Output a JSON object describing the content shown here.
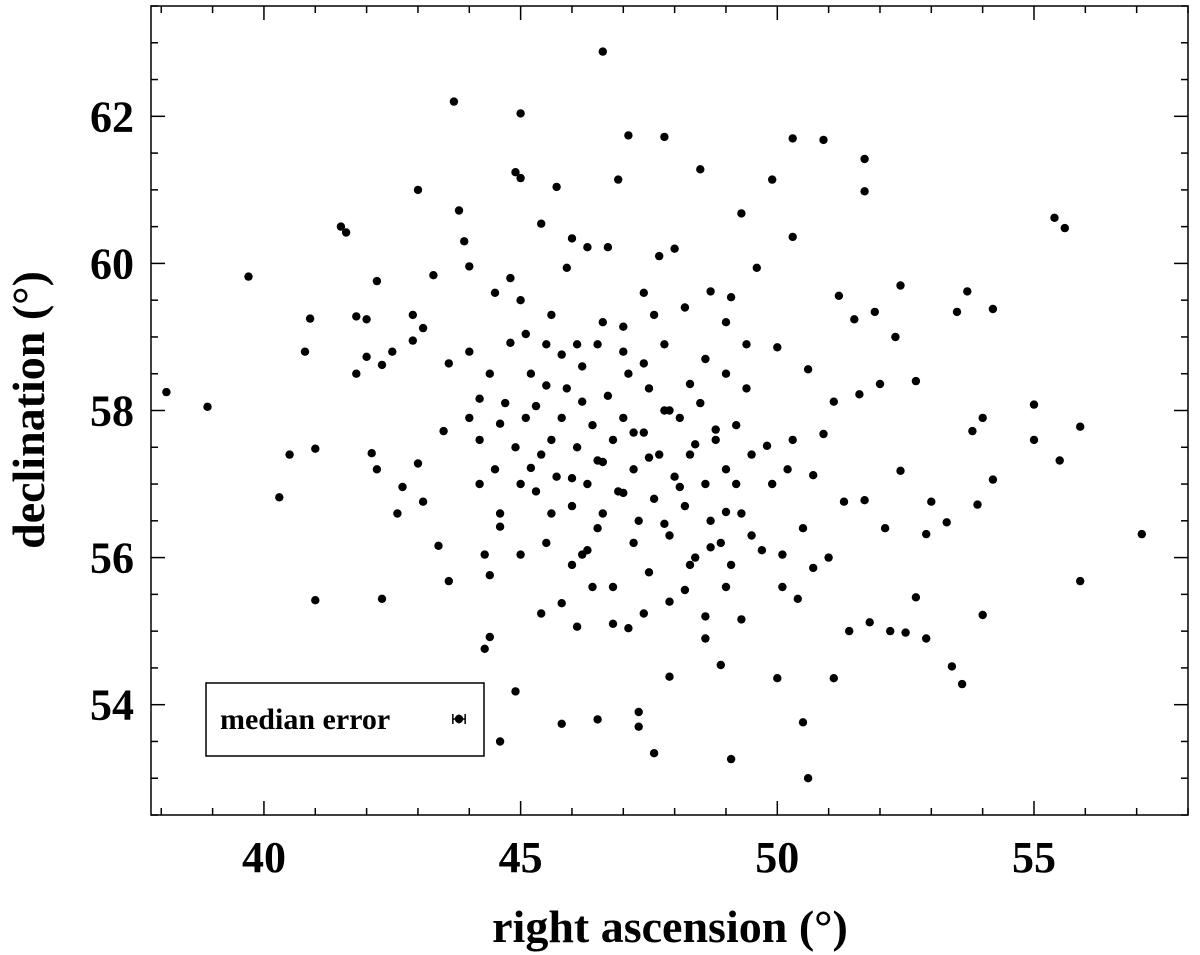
{
  "chart_data": {
    "type": "scatter",
    "title": "",
    "xlabel": "right ascension (°)",
    "ylabel": "declination (°)",
    "xlim": [
      37.8,
      58.0
    ],
    "ylim": [
      52.5,
      63.5
    ],
    "x_ticks": [
      40,
      45,
      50,
      55
    ],
    "y_ticks": [
      54,
      56,
      58,
      60,
      62
    ],
    "x_minor_step": 1,
    "y_minor_step": 0.5,
    "grid": false,
    "legend": {
      "placement": "bottom-left",
      "label": "median error",
      "error_x": 0.12,
      "error_y": 0.06
    },
    "marker_color": "#000000",
    "series": [
      {
        "points": [
          [
            38.1,
            58.25
          ],
          [
            38.9,
            58.05
          ],
          [
            39.7,
            59.82
          ],
          [
            40.3,
            56.82
          ],
          [
            40.5,
            57.4
          ],
          [
            40.8,
            58.8
          ],
          [
            40.9,
            59.25
          ],
          [
            41.0,
            57.48
          ],
          [
            41.0,
            55.42
          ],
          [
            41.5,
            60.5
          ],
          [
            41.6,
            60.42
          ],
          [
            41.8,
            59.28
          ],
          [
            41.8,
            58.5
          ],
          [
            42.0,
            59.24
          ],
          [
            42.0,
            58.73
          ],
          [
            42.1,
            57.42
          ],
          [
            42.2,
            57.2
          ],
          [
            42.2,
            59.76
          ],
          [
            42.3,
            55.44
          ],
          [
            42.3,
            58.62
          ],
          [
            42.5,
            58.8
          ],
          [
            42.6,
            56.6
          ],
          [
            42.7,
            56.96
          ],
          [
            42.9,
            58.95
          ],
          [
            42.9,
            59.3
          ],
          [
            43.0,
            57.28
          ],
          [
            43.0,
            61.0
          ],
          [
            43.1,
            59.12
          ],
          [
            43.1,
            56.76
          ],
          [
            43.3,
            59.84
          ],
          [
            43.4,
            56.16
          ],
          [
            43.5,
            57.72
          ],
          [
            43.6,
            55.68
          ],
          [
            43.6,
            58.64
          ],
          [
            43.7,
            62.2
          ],
          [
            43.8,
            60.72
          ],
          [
            43.9,
            60.3
          ],
          [
            44.0,
            59.96
          ],
          [
            44.0,
            58.8
          ],
          [
            44.2,
            57.0
          ],
          [
            44.2,
            58.16
          ],
          [
            44.3,
            56.04
          ],
          [
            44.3,
            54.76
          ],
          [
            44.4,
            54.92
          ],
          [
            44.4,
            55.76
          ],
          [
            44.5,
            59.6
          ],
          [
            44.6,
            56.42
          ],
          [
            44.6,
            57.82
          ],
          [
            44.6,
            53.5
          ],
          [
            44.8,
            59.8
          ],
          [
            44.8,
            58.92
          ],
          [
            44.9,
            54.18
          ],
          [
            44.9,
            61.24
          ],
          [
            45.0,
            62.04
          ],
          [
            45.0,
            61.16
          ],
          [
            45.0,
            56.04
          ],
          [
            45.1,
            59.04
          ],
          [
            45.2,
            57.22
          ],
          [
            45.3,
            58.06
          ],
          [
            45.4,
            60.54
          ],
          [
            45.4,
            55.24
          ],
          [
            45.5,
            58.34
          ],
          [
            45.6,
            57.6
          ],
          [
            45.6,
            56.6
          ],
          [
            45.7,
            61.04
          ],
          [
            45.8,
            55.38
          ],
          [
            45.8,
            53.74
          ],
          [
            45.8,
            58.76
          ],
          [
            45.9,
            59.94
          ],
          [
            46.0,
            57.08
          ],
          [
            46.0,
            60.34
          ],
          [
            46.1,
            55.06
          ],
          [
            46.2,
            56.04
          ],
          [
            46.2,
            58.12
          ],
          [
            46.3,
            60.22
          ],
          [
            46.4,
            55.6
          ],
          [
            46.5,
            53.8
          ],
          [
            46.5,
            57.32
          ],
          [
            46.5,
            58.9
          ],
          [
            46.6,
            62.88
          ],
          [
            46.6,
            56.6
          ],
          [
            46.7,
            60.22
          ],
          [
            46.8,
            55.1
          ],
          [
            46.9,
            61.14
          ],
          [
            47.0,
            59.14
          ],
          [
            47.0,
            56.88
          ],
          [
            47.1,
            55.04
          ],
          [
            47.1,
            61.74
          ],
          [
            47.2,
            57.7
          ],
          [
            47.3,
            53.9
          ],
          [
            47.3,
            53.7
          ],
          [
            47.4,
            55.24
          ],
          [
            47.4,
            58.64
          ],
          [
            47.5,
            57.36
          ],
          [
            47.6,
            53.34
          ],
          [
            47.6,
            59.3
          ],
          [
            47.7,
            60.1
          ],
          [
            47.8,
            56.46
          ],
          [
            47.8,
            61.72
          ],
          [
            47.9,
            54.38
          ],
          [
            47.9,
            58.0
          ],
          [
            48.0,
            60.2
          ],
          [
            48.1,
            56.96
          ],
          [
            48.2,
            55.56
          ],
          [
            48.3,
            58.36
          ],
          [
            48.4,
            57.54
          ],
          [
            48.5,
            61.28
          ],
          [
            48.6,
            54.9
          ],
          [
            48.7,
            56.14
          ],
          [
            48.7,
            59.62
          ],
          [
            48.8,
            57.74
          ],
          [
            48.9,
            54.54
          ],
          [
            49.0,
            58.5
          ],
          [
            49.0,
            56.62
          ],
          [
            49.1,
            59.54
          ],
          [
            49.1,
            53.26
          ],
          [
            49.2,
            57.0
          ],
          [
            49.3,
            60.68
          ],
          [
            49.3,
            55.16
          ],
          [
            49.4,
            58.3
          ],
          [
            49.5,
            56.3
          ],
          [
            49.6,
            59.94
          ],
          [
            49.8,
            57.52
          ],
          [
            49.9,
            61.14
          ],
          [
            50.0,
            58.86
          ],
          [
            50.0,
            54.36
          ],
          [
            50.1,
            56.04
          ],
          [
            50.2,
            57.2
          ],
          [
            50.3,
            61.7
          ],
          [
            50.3,
            60.36
          ],
          [
            50.4,
            55.44
          ],
          [
            50.5,
            53.76
          ],
          [
            50.6,
            58.56
          ],
          [
            50.6,
            53.0
          ],
          [
            50.7,
            57.12
          ],
          [
            50.7,
            55.86
          ],
          [
            50.9,
            61.68
          ],
          [
            50.9,
            57.68
          ],
          [
            51.0,
            56.0
          ],
          [
            51.1,
            58.12
          ],
          [
            51.1,
            54.36
          ],
          [
            51.2,
            59.56
          ],
          [
            51.3,
            56.76
          ],
          [
            51.4,
            55.0
          ],
          [
            51.5,
            59.24
          ],
          [
            51.6,
            58.22
          ],
          [
            51.7,
            61.42
          ],
          [
            51.7,
            60.98
          ],
          [
            51.7,
            56.78
          ],
          [
            51.8,
            55.12
          ],
          [
            51.9,
            59.34
          ],
          [
            52.0,
            58.36
          ],
          [
            52.1,
            56.4
          ],
          [
            52.2,
            55.0
          ],
          [
            52.3,
            59.0
          ],
          [
            52.4,
            57.18
          ],
          [
            52.4,
            59.7
          ],
          [
            52.5,
            54.98
          ],
          [
            52.7,
            58.4
          ],
          [
            52.7,
            55.46
          ],
          [
            52.9,
            56.32
          ],
          [
            52.9,
            54.9
          ],
          [
            53.0,
            56.76
          ],
          [
            53.3,
            56.48
          ],
          [
            53.4,
            54.52
          ],
          [
            53.5,
            59.34
          ],
          [
            53.6,
            54.28
          ],
          [
            53.7,
            59.62
          ],
          [
            53.8,
            57.72
          ],
          [
            53.9,
            56.72
          ],
          [
            54.0,
            57.9
          ],
          [
            54.0,
            55.22
          ],
          [
            54.2,
            59.38
          ],
          [
            54.2,
            57.06
          ],
          [
            55.0,
            58.08
          ],
          [
            55.0,
            57.6
          ],
          [
            55.4,
            60.62
          ],
          [
            55.5,
            57.32
          ],
          [
            55.6,
            60.48
          ],
          [
            55.9,
            57.78
          ],
          [
            55.9,
            55.68
          ],
          [
            57.1,
            56.32
          ],
          [
            44.0,
            57.9
          ],
          [
            44.2,
            57.6
          ],
          [
            44.5,
            57.2
          ],
          [
            44.7,
            58.1
          ],
          [
            44.9,
            57.5
          ],
          [
            45.1,
            57.9
          ],
          [
            45.2,
            58.5
          ],
          [
            45.3,
            56.9
          ],
          [
            45.4,
            57.4
          ],
          [
            45.5,
            58.9
          ],
          [
            45.7,
            57.1
          ],
          [
            45.8,
            57.9
          ],
          [
            45.9,
            58.3
          ],
          [
            46.0,
            56.7
          ],
          [
            46.1,
            57.5
          ],
          [
            46.2,
            58.6
          ],
          [
            46.3,
            57.0
          ],
          [
            46.4,
            57.8
          ],
          [
            46.5,
            56.4
          ],
          [
            46.6,
            57.3
          ],
          [
            46.7,
            58.2
          ],
          [
            46.8,
            57.6
          ],
          [
            46.9,
            56.9
          ],
          [
            47.0,
            57.9
          ],
          [
            47.1,
            58.5
          ],
          [
            47.2,
            57.2
          ],
          [
            47.3,
            56.5
          ],
          [
            47.4,
            57.7
          ],
          [
            47.5,
            58.3
          ],
          [
            47.6,
            56.8
          ],
          [
            47.7,
            57.4
          ],
          [
            47.8,
            58.0
          ],
          [
            47.9,
            56.3
          ],
          [
            48.0,
            57.1
          ],
          [
            48.1,
            57.9
          ],
          [
            48.2,
            56.7
          ],
          [
            48.3,
            57.4
          ],
          [
            48.4,
            56.0
          ],
          [
            48.5,
            58.1
          ],
          [
            48.6,
            57.0
          ],
          [
            48.7,
            56.5
          ],
          [
            48.8,
            57.6
          ],
          [
            48.9,
            56.2
          ],
          [
            49.0,
            57.2
          ],
          [
            49.1,
            55.9
          ],
          [
            49.2,
            57.8
          ],
          [
            49.3,
            56.6
          ],
          [
            49.5,
            57.4
          ],
          [
            49.7,
            56.1
          ],
          [
            49.9,
            57.0
          ],
          [
            50.1,
            55.6
          ],
          [
            50.3,
            57.6
          ],
          [
            50.5,
            56.4
          ],
          [
            44.6,
            56.6
          ],
          [
            45.0,
            57.0
          ],
          [
            45.5,
            56.2
          ],
          [
            46.0,
            55.9
          ],
          [
            46.3,
            56.1
          ],
          [
            46.8,
            55.6
          ],
          [
            47.2,
            56.2
          ],
          [
            47.5,
            55.8
          ],
          [
            47.9,
            55.4
          ],
          [
            48.3,
            55.9
          ],
          [
            48.6,
            55.2
          ],
          [
            49.0,
            55.6
          ],
          [
            46.1,
            58.9
          ],
          [
            46.6,
            59.2
          ],
          [
            47.0,
            58.8
          ],
          [
            47.4,
            59.6
          ],
          [
            47.8,
            58.9
          ],
          [
            48.2,
            59.4
          ],
          [
            48.6,
            58.7
          ],
          [
            49.0,
            59.2
          ],
          [
            49.4,
            58.9
          ],
          [
            45.6,
            59.3
          ],
          [
            45.0,
            59.5
          ],
          [
            44.4,
            58.5
          ]
        ]
      }
    ]
  }
}
